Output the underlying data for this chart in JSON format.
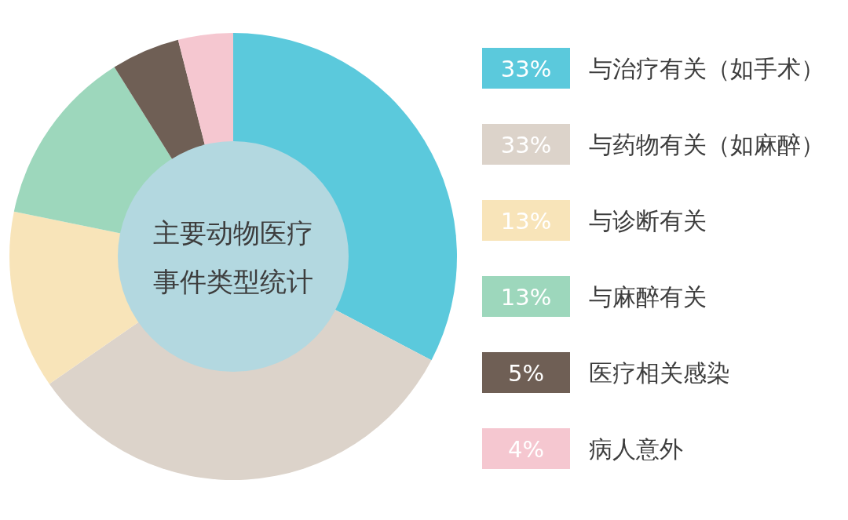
{
  "chart_data": {
    "type": "donut",
    "title": "主要动物医疗事件类型统计",
    "categories": [
      "与治疗有关（如手术）",
      "与药物有关（如麻醉）",
      "与诊断有关",
      "与麻醉有关",
      "医疗相关感染",
      "病人意外"
    ],
    "values": [
      33,
      33,
      13,
      13,
      5,
      4
    ],
    "colors": [
      "#5bc9dc",
      "#dcd3ca",
      "#f8e4b9",
      "#9dd7bc",
      "#6f5f55",
      "#f5c7d0"
    ],
    "value_labels": [
      "33%",
      "33%",
      "13%",
      "13%",
      "5%",
      "4%"
    ],
    "legend": "right"
  }
}
